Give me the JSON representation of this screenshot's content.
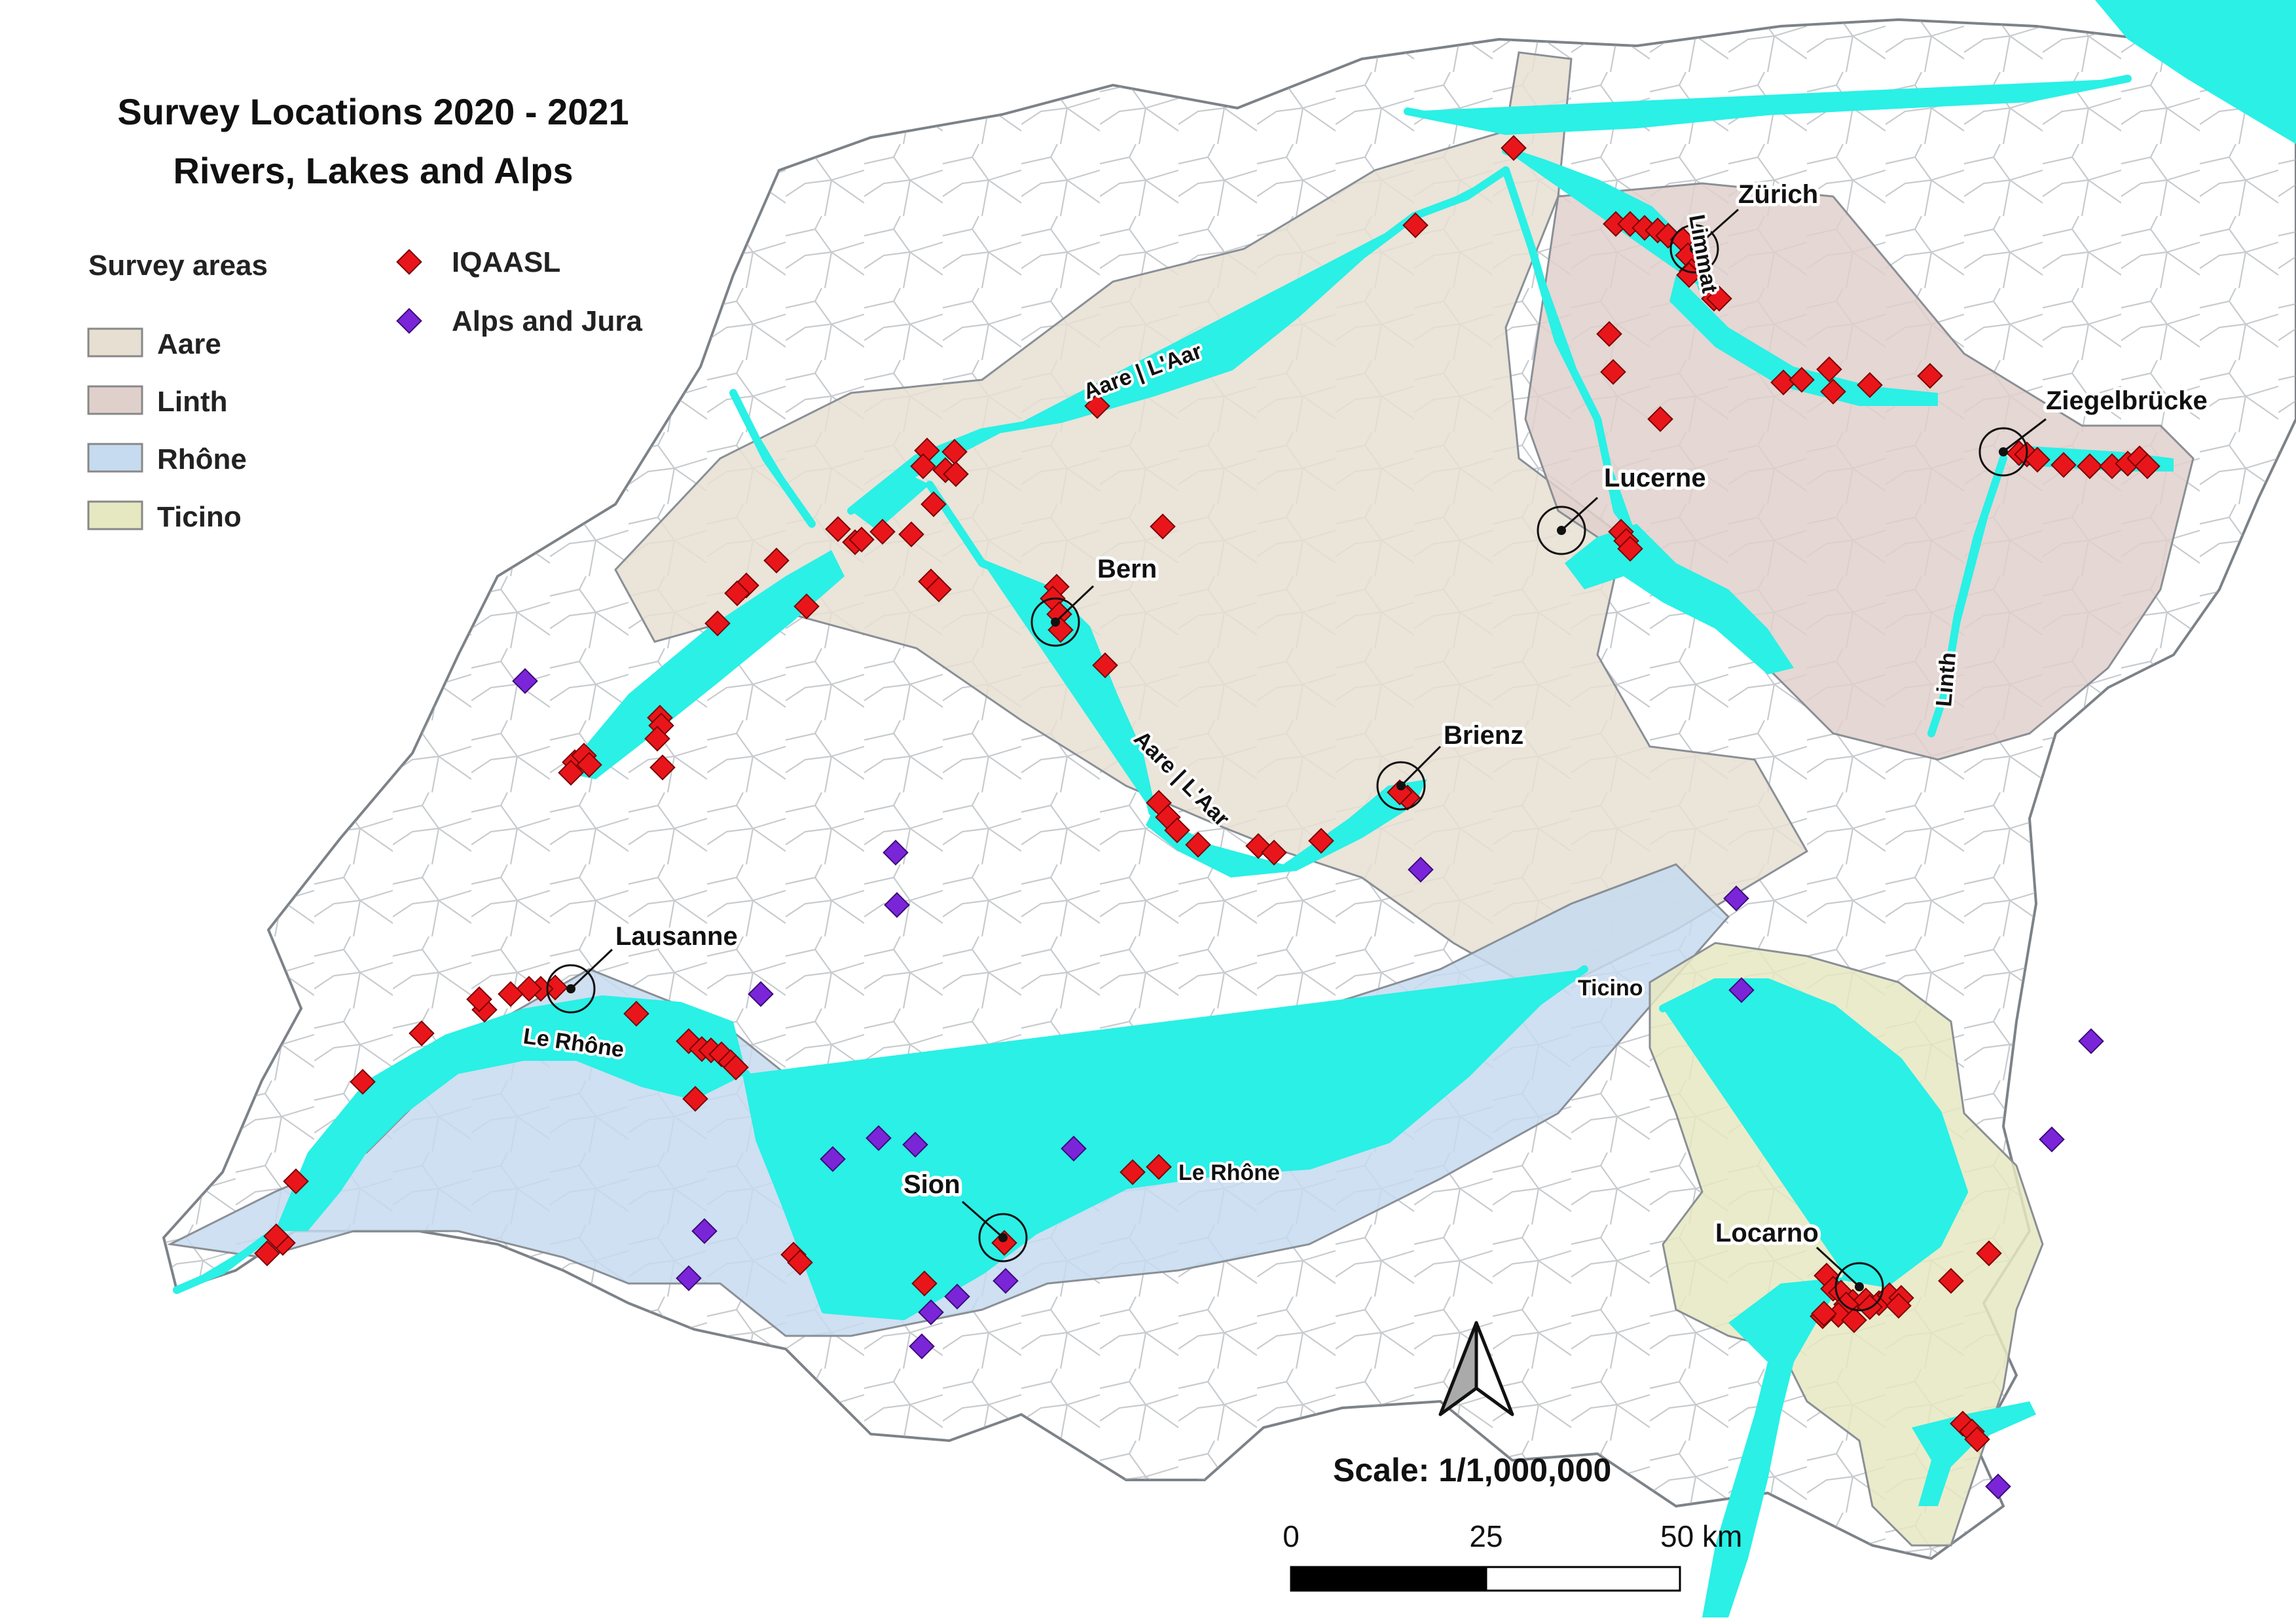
{
  "title": {
    "line1": "Survey Locations 2020 - 2021",
    "line2": "Rivers, Lakes and Alps"
  },
  "legend": {
    "areas_heading": "Survey areas",
    "areas": [
      {
        "label": "Aare",
        "color": "#e6dfd2"
      },
      {
        "label": "Linth",
        "color": "#e0d0cb"
      },
      {
        "label": "Rhône",
        "color": "#c6dbef"
      },
      {
        "label": "Ticino",
        "color": "#e6e8c1"
      }
    ],
    "points": [
      {
        "label": "IQAASL",
        "color": "#e8161b",
        "icon": "red-diamond-icon"
      },
      {
        "label": "Alps and Jura",
        "color": "#7b25d9",
        "icon": "purple-diamond-icon"
      }
    ]
  },
  "cities": {
    "zurich": "Zürich",
    "ziegelbrucke": "Ziegelbrücke",
    "lucerne": "Lucerne",
    "bern": "Bern",
    "brienz": "Brienz",
    "lausanne": "Lausanne",
    "sion": "Sion",
    "locarno": "Locarno"
  },
  "rivers": {
    "aare_north": "Aare | L'Aar",
    "aare_south": "Aare | L'Aar",
    "limmat": "Limmat",
    "linth": "Linth",
    "ticino": "Ticino",
    "rhone_lake": "Le Rhône",
    "rhone_valley": "Le Rhône"
  },
  "scale": {
    "label": "Scale: 1/1,000,000",
    "ticks": [
      "0",
      "25",
      "50 km"
    ]
  },
  "colors": {
    "water": "#2af0e6",
    "border": "#8a8f96",
    "iqaasl": "#e8161b",
    "alps": "#7b25d9"
  }
}
